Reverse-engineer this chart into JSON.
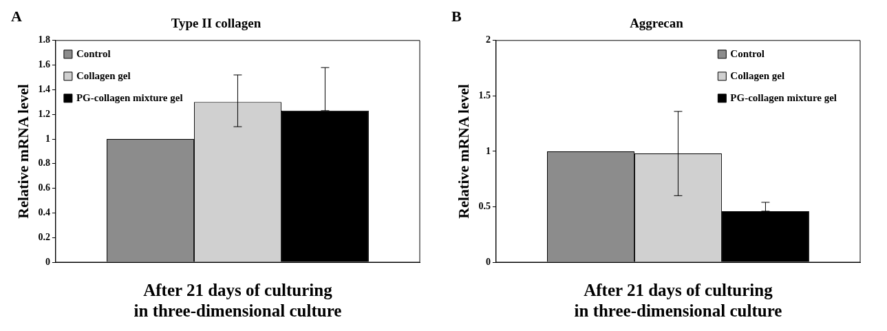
{
  "chart_data": [
    {
      "type": "bar",
      "title": "Type II collagen",
      "ylabel": "Relative mRNA level",
      "xlabel": "After 21 days of culturing\nin three-dimensional culture",
      "annotations": [
        "A"
      ],
      "categories": [
        null
      ],
      "series": [
        {
          "name": "Control",
          "color": "#8c8c8c",
          "values": [
            1.0
          ]
        },
        {
          "name": "Collagen gel",
          "color": "#d0d0d0",
          "values": [
            1.3
          ],
          "errors": [
            [
              1.1,
              1.52
            ]
          ]
        },
        {
          "name": "PG-collagen mixture gel",
          "color": "#000000",
          "values": [
            1.23
          ],
          "errors": [
            [
              1.23,
              1.58
            ]
          ]
        }
      ],
      "ylim": [
        0,
        1.8
      ],
      "yticks": [
        0,
        0.2,
        0.4,
        0.6,
        0.8,
        1,
        1.2,
        1.4,
        1.6,
        1.8
      ],
      "grid": false,
      "legend": "top left"
    },
    {
      "type": "bar",
      "title": "Aggrecan",
      "ylabel": "Relative mRNA level",
      "xlabel": "After 21 days of culturing\nin three-dimensional culture",
      "annotations": [
        "B"
      ],
      "categories": [
        null
      ],
      "series": [
        {
          "name": "Control",
          "color": "#8c8c8c",
          "values": [
            1.0
          ]
        },
        {
          "name": "Collagen gel",
          "color": "#d0d0d0",
          "values": [
            0.98
          ],
          "errors": [
            [
              0.6,
              1.36
            ]
          ]
        },
        {
          "name": "PG-collagen mixture gel",
          "color": "#000000",
          "values": [
            0.46
          ],
          "errors": [
            [
              0.46,
              0.54
            ]
          ]
        }
      ],
      "ylim": [
        0,
        2
      ],
      "yticks": [
        0,
        0.5,
        1,
        1.5,
        2
      ],
      "grid": false,
      "legend": "top right"
    }
  ]
}
